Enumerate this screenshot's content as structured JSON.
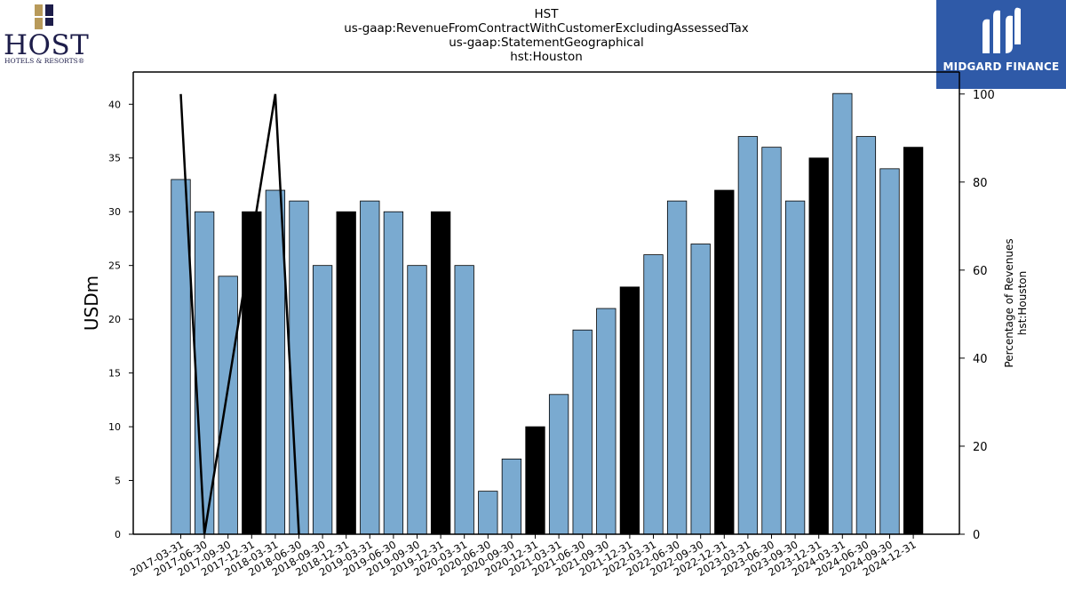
{
  "titles": [
    "HST",
    "us-gaap:RevenueFromContractWithCustomerExcludingAssessedTax",
    "us-gaap:StatementGeographical",
    "hst:Houston"
  ],
  "logos": {
    "left": {
      "word": "HOST",
      "sub": "HOTELS & RESORTS®"
    },
    "right": {
      "word": "MIDGARD FINANCE"
    }
  },
  "colors": {
    "bar": "#7aaad0",
    "bar_q4": "#000000",
    "line": "#000000",
    "midgard_bg": "#2f5aa8"
  },
  "chart_data": {
    "type": "bar",
    "categories": [
      "2017-03-31",
      "2017-06-30",
      "2017-09-30",
      "2017-12-31",
      "2018-03-31",
      "2018-06-30",
      "2018-09-30",
      "2018-12-31",
      "2019-03-31",
      "2019-06-30",
      "2019-09-30",
      "2019-12-31",
      "2020-03-31",
      "2020-06-30",
      "2020-09-30",
      "2020-12-31",
      "2021-03-31",
      "2021-06-30",
      "2021-09-30",
      "2021-12-31",
      "2022-03-31",
      "2022-06-30",
      "2022-09-30",
      "2022-12-31",
      "2023-03-31",
      "2023-06-30",
      "2023-09-30",
      "2023-12-31",
      "2024-03-31",
      "2024-06-30",
      "2024-09-30",
      "2024-12-31"
    ],
    "values": [
      33,
      30,
      24,
      30,
      32,
      31,
      25,
      30,
      31,
      30,
      25,
      30,
      25,
      4,
      7,
      10,
      13,
      19,
      21,
      23,
      26,
      31,
      27,
      32,
      37,
      36,
      31,
      35,
      41,
      37,
      34,
      36
    ],
    "highlight_q4": true,
    "ylabel": "USDm",
    "ylim": [
      0,
      43
    ],
    "yticks": [
      0,
      5,
      10,
      15,
      20,
      25,
      30,
      35,
      40
    ],
    "secondary": {
      "ylabel_lines": [
        "Percentage of Revenues",
        "hst:Houston"
      ],
      "ylim": [
        0,
        105
      ],
      "yticks": [
        0,
        20,
        40,
        60,
        80,
        100
      ],
      "line_points": [
        {
          "x": "2017-03-31",
          "y": 100
        },
        {
          "x": "2017-06-30",
          "y": 0
        },
        {
          "x": "2018-03-31",
          "y": 100
        },
        {
          "x": "2018-06-30",
          "y": 0
        }
      ]
    },
    "grid": false
  }
}
